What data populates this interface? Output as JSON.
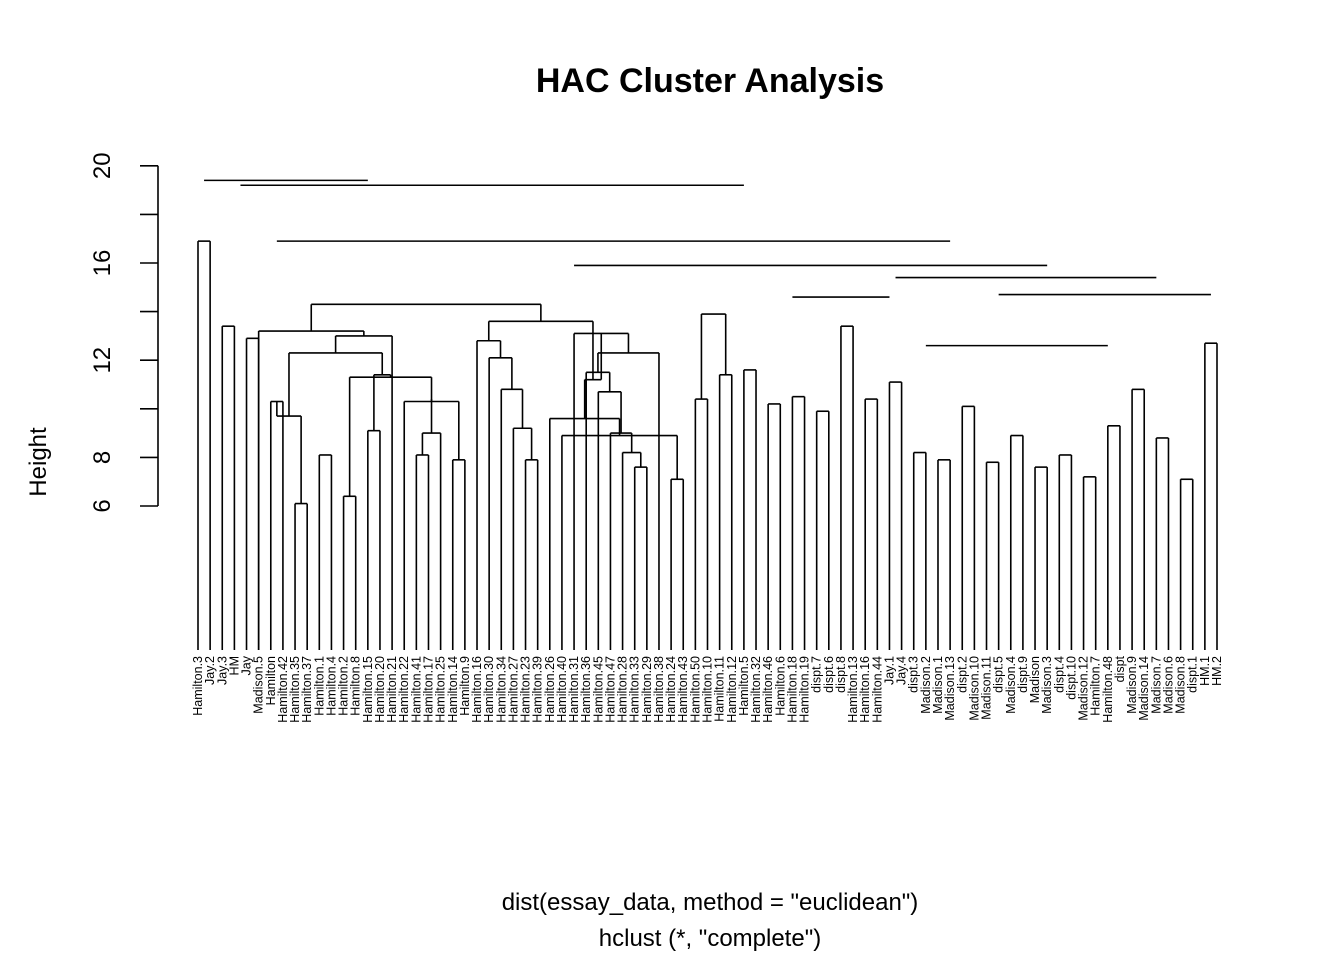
{
  "chart_data": {
    "type": "dendrogram",
    "title": "HAC Cluster Analysis",
    "ylabel": "Height",
    "xlabel": "dist(essay_data, method = \"euclidean\")",
    "sub": "hclust (*, \"complete\")",
    "y_ticks": [
      6,
      8,
      12,
      16,
      20
    ],
    "y_axis_range": [
      6,
      20
    ],
    "leaves": [
      "Hamilton.3",
      "Jay.2",
      "Jay.3",
      "HM",
      "Jay",
      "Madison.5",
      "Hamilton",
      "Hamilton.42",
      "Hamilton.35",
      "Hamilton.37",
      "Hamilton.1",
      "Hamilton.4",
      "Hamilton.2",
      "Hamilton.8",
      "Hamilton.15",
      "Hamilton.20",
      "Hamilton.21",
      "Hamilton.22",
      "Hamilton.41",
      "Hamilton.17",
      "Hamilton.25",
      "Hamilton.14",
      "Hamilton.9",
      "Hamilton.16",
      "Hamilton.30",
      "Hamilton.34",
      "Hamilton.27",
      "Hamilton.23",
      "Hamilton.39",
      "Hamilton.26",
      "Hamilton.40",
      "Hamilton.31",
      "Hamilton.36",
      "Hamilton.45",
      "Hamilton.47",
      "Hamilton.28",
      "Hamilton.33",
      "Hamilton.29",
      "Hamilton.38",
      "Hamilton.24",
      "Hamilton.43",
      "Hamilton.50",
      "Hamilton.10",
      "Hamilton.11",
      "Hamilton.12",
      "Hamilton.5",
      "Hamilton.32",
      "Hamilton.46",
      "Hamilton.6",
      "Hamilton.18",
      "Hamilton.19",
      "dispt.7",
      "dispt.6",
      "dispt.8",
      "Hamilton.13",
      "Hamilton.16",
      "Hamilton.44",
      "Jay.1",
      "Jay.4",
      "dispt.3",
      "Madison.2",
      "Madison.1",
      "Madison.13",
      "dispt.2",
      "Madison.10",
      "Madison.11",
      "dispt.5",
      "Madison.4",
      "dispt.9",
      "Madison",
      "Madison.3",
      "dispt.4",
      "dispt.10",
      "Madison.12",
      "Hamilton.7",
      "Hamilton.48",
      "dispt",
      "Madison.9",
      "Madison.14",
      "Madison.7",
      "Madison.6",
      "Madison.8",
      "dispt.1",
      "HM.1",
      "HM.2"
    ],
    "merges": [
      {
        "l": 6,
        "r": 7,
        "h": 10.3
      },
      {
        "l": 8,
        "r": 9,
        "h": 6.1
      },
      {
        "l": 10,
        "r": 11,
        "h": 8.1
      },
      {
        "l": "A",
        "r": "B",
        "h": 9.7
      },
      {
        "l": 18,
        "r": 19,
        "h": 8.1
      },
      {
        "l": 21,
        "r": 22,
        "h": 7.9
      },
      {
        "l": 20,
        "r": "E",
        "h": 9.0
      },
      {
        "l": 17,
        "r": "F",
        "h": 10.3
      },
      {
        "l": 12,
        "r": 13,
        "h": 6.4
      },
      {
        "l": "G",
        "r": "H",
        "h": 10.4
      },
      {
        "l": "I",
        "r": "J",
        "h": 11.3
      },
      {
        "l": 14,
        "r": 15,
        "h": 9.1
      },
      {
        "l": "K",
        "r": "L",
        "h": 11.4
      },
      {
        "l": "D",
        "r": "M",
        "h": 12.3
      },
      {
        "l": 16,
        "r": "N",
        "h": 13.0
      },
      {
        "l": 5,
        "r": "O",
        "h": 13.2
      },
      {
        "l": 27,
        "r": 28,
        "h": 7.9
      },
      {
        "l": 26,
        "r": "Q",
        "h": 9.2
      },
      {
        "l": 25,
        "r": "R",
        "h": 10.8
      },
      {
        "l": 24,
        "r": "S",
        "h": 12.1
      },
      {
        "l": 23,
        "r": "T",
        "h": 12.8
      },
      {
        "l": 36,
        "r": 37,
        "h": 7.6
      },
      {
        "l": 35,
        "r": "V",
        "h": 8.2
      },
      {
        "l": 34,
        "r": "W",
        "h": 9.0
      },
      {
        "l": 33,
        "r": "X",
        "h": 10.7
      },
      {
        "l": 32,
        "r": "Y",
        "h": 11.5
      },
      {
        "l": 38,
        "r": "Z",
        "h": 12.3
      },
      {
        "l": 31,
        "r": "AA",
        "h": 13.1
      },
      {
        "l": 39,
        "r": 40,
        "h": 7.1
      },
      {
        "l": 30,
        "r": "AC",
        "h": 8.9
      },
      {
        "l": 29,
        "r": "AD",
        "h": 9.6
      },
      {
        "l": "AB",
        "r": "AE",
        "h": 11.2
      },
      {
        "l": "U",
        "r": "AF",
        "h": 13.6
      },
      {
        "l": "P",
        "r": "AG",
        "h": 14.3
      },
      {
        "l": 41,
        "r": 42,
        "h": 10.4
      },
      {
        "l": 43,
        "r": 44,
        "h": 11.4
      },
      {
        "l": "AI",
        "r": "AJ",
        "h": 13.9
      }
    ]
  }
}
